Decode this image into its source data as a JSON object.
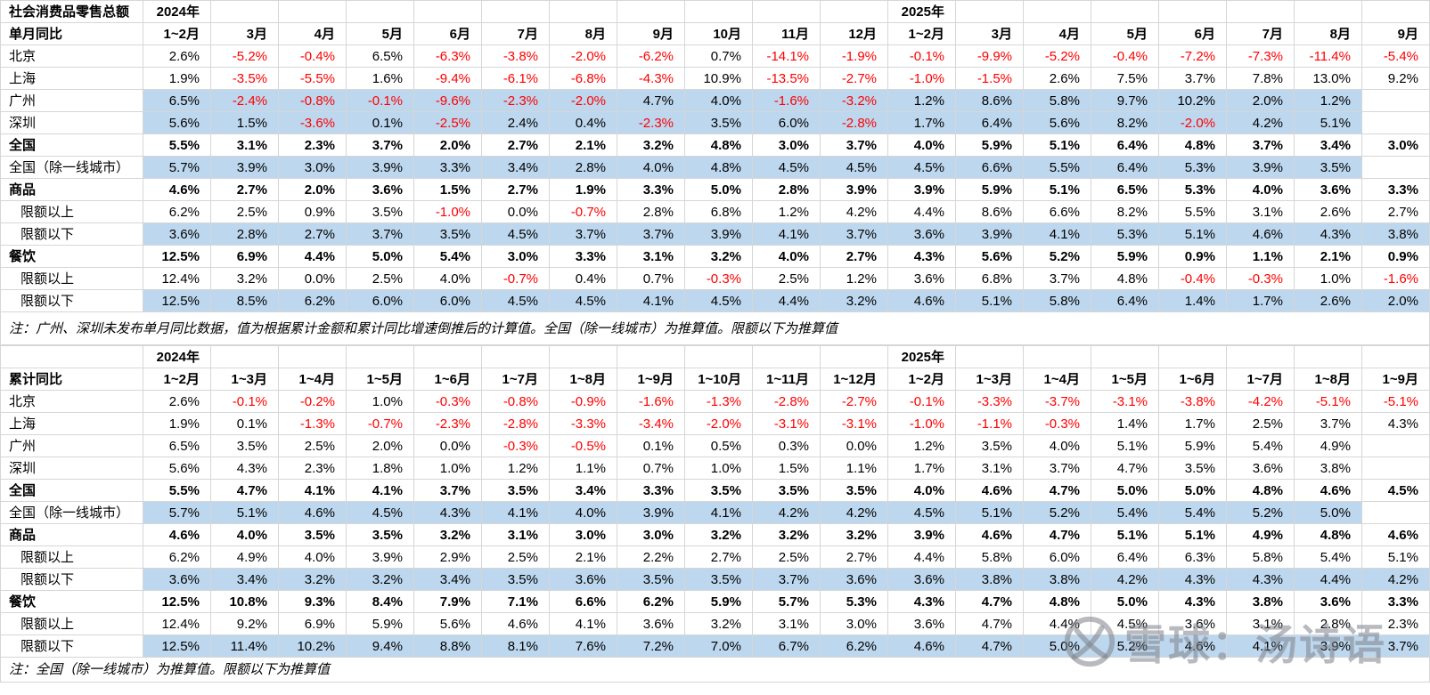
{
  "colors": {
    "highlight": "#BDD7EE",
    "negative": "#FF0000",
    "grid": "#D6D6D6"
  },
  "watermark": {
    "text": "雪球：汤诗语",
    "icon": "xueqiu-logo"
  },
  "table1": {
    "title": "社会消费品零售总额",
    "row_header": "单月同比",
    "year_headers": [
      {
        "col": 0,
        "label": "2024年"
      },
      {
        "col": 11,
        "label": "2025年"
      }
    ],
    "columns": [
      "1~2月",
      "3月",
      "4月",
      "5月",
      "6月",
      "7月",
      "8月",
      "9月",
      "10月",
      "11月",
      "12月",
      "1~2月",
      "3月",
      "4月",
      "5月",
      "6月",
      "7月",
      "8月",
      "9月"
    ],
    "rows": [
      {
        "label": "北京",
        "bold": false,
        "indent": false,
        "highlight": false,
        "values": [
          "2.6%",
          "-5.2%",
          "-0.4%",
          "6.5%",
          "-6.3%",
          "-3.8%",
          "-2.0%",
          "-6.2%",
          "0.7%",
          "-14.1%",
          "-1.9%",
          "-0.1%",
          "-9.9%",
          "-5.2%",
          "-0.4%",
          "-7.2%",
          "-7.3%",
          "-11.4%",
          "-5.4%"
        ]
      },
      {
        "label": "上海",
        "bold": false,
        "indent": false,
        "highlight": false,
        "values": [
          "1.9%",
          "-3.5%",
          "-5.5%",
          "1.6%",
          "-9.4%",
          "-6.1%",
          "-6.8%",
          "-4.3%",
          "10.9%",
          "-13.5%",
          "-2.7%",
          "-1.0%",
          "-1.5%",
          "2.6%",
          "7.5%",
          "3.7%",
          "7.8%",
          "13.0%",
          "9.2%"
        ]
      },
      {
        "label": "广州",
        "bold": false,
        "indent": false,
        "highlight": true,
        "values": [
          "6.5%",
          "-2.4%",
          "-0.8%",
          "-0.1%",
          "-9.6%",
          "-2.3%",
          "-2.0%",
          "4.7%",
          "4.0%",
          "-1.6%",
          "-3.2%",
          "1.2%",
          "8.6%",
          "5.8%",
          "9.7%",
          "10.2%",
          "2.0%",
          "1.2%",
          ""
        ]
      },
      {
        "label": "深圳",
        "bold": false,
        "indent": false,
        "highlight": true,
        "values": [
          "5.6%",
          "1.5%",
          "-3.6%",
          "0.1%",
          "-2.5%",
          "2.4%",
          "0.4%",
          "-2.3%",
          "3.5%",
          "6.0%",
          "-2.8%",
          "1.7%",
          "6.4%",
          "5.6%",
          "8.2%",
          "-2.0%",
          "4.2%",
          "5.1%",
          ""
        ]
      },
      {
        "label": "全国",
        "bold": true,
        "indent": false,
        "highlight": false,
        "values": [
          "5.5%",
          "3.1%",
          "2.3%",
          "3.7%",
          "2.0%",
          "2.7%",
          "2.1%",
          "3.2%",
          "4.8%",
          "3.0%",
          "3.7%",
          "4.0%",
          "5.9%",
          "5.1%",
          "6.4%",
          "4.8%",
          "3.7%",
          "3.4%",
          "3.0%"
        ]
      },
      {
        "label": "全国（除一线城市）",
        "bold": false,
        "indent": false,
        "highlight": true,
        "values": [
          "5.7%",
          "3.9%",
          "3.0%",
          "3.9%",
          "3.3%",
          "3.4%",
          "2.8%",
          "4.0%",
          "4.8%",
          "4.5%",
          "4.5%",
          "4.5%",
          "6.6%",
          "5.5%",
          "6.4%",
          "5.3%",
          "3.9%",
          "3.5%",
          ""
        ]
      },
      {
        "label": "商品",
        "bold": true,
        "indent": false,
        "highlight": false,
        "values": [
          "4.6%",
          "2.7%",
          "2.0%",
          "3.6%",
          "1.5%",
          "2.7%",
          "1.9%",
          "3.3%",
          "5.0%",
          "2.8%",
          "3.9%",
          "3.9%",
          "5.9%",
          "5.1%",
          "6.5%",
          "5.3%",
          "4.0%",
          "3.6%",
          "3.3%"
        ]
      },
      {
        "label": "限额以上",
        "bold": false,
        "indent": true,
        "highlight": false,
        "values": [
          "6.2%",
          "2.5%",
          "0.9%",
          "3.5%",
          "-1.0%",
          "0.0%",
          "-0.7%",
          "2.8%",
          "6.8%",
          "1.2%",
          "4.2%",
          "4.4%",
          "8.6%",
          "6.6%",
          "8.2%",
          "5.5%",
          "3.1%",
          "2.6%",
          "2.7%"
        ]
      },
      {
        "label": "限额以下",
        "bold": false,
        "indent": true,
        "highlight": true,
        "values": [
          "3.6%",
          "2.8%",
          "2.7%",
          "3.7%",
          "3.5%",
          "4.5%",
          "3.7%",
          "3.7%",
          "3.9%",
          "4.1%",
          "3.7%",
          "3.6%",
          "3.9%",
          "4.1%",
          "5.3%",
          "5.1%",
          "4.6%",
          "4.3%",
          "3.8%"
        ]
      },
      {
        "label": "餐饮",
        "bold": true,
        "indent": false,
        "highlight": false,
        "values": [
          "12.5%",
          "6.9%",
          "4.4%",
          "5.0%",
          "5.4%",
          "3.0%",
          "3.3%",
          "3.1%",
          "3.2%",
          "4.0%",
          "2.7%",
          "4.3%",
          "5.6%",
          "5.2%",
          "5.9%",
          "0.9%",
          "1.1%",
          "2.1%",
          "0.9%"
        ]
      },
      {
        "label": "限额以上",
        "bold": false,
        "indent": true,
        "highlight": false,
        "values": [
          "12.4%",
          "3.2%",
          "0.0%",
          "2.5%",
          "4.0%",
          "-0.7%",
          "0.4%",
          "0.7%",
          "-0.3%",
          "2.5%",
          "1.2%",
          "3.6%",
          "6.8%",
          "3.7%",
          "4.8%",
          "-0.4%",
          "-0.3%",
          "1.0%",
          "-1.6%"
        ]
      },
      {
        "label": "限额以下",
        "bold": false,
        "indent": true,
        "highlight": true,
        "values": [
          "12.5%",
          "8.5%",
          "6.2%",
          "6.0%",
          "6.0%",
          "4.5%",
          "4.5%",
          "4.1%",
          "4.5%",
          "4.4%",
          "3.2%",
          "4.6%",
          "5.1%",
          "5.8%",
          "6.4%",
          "1.4%",
          "1.7%",
          "2.6%",
          "2.0%"
        ]
      }
    ],
    "note": "注：广州、深圳未发布单月同比数据，值为根据累计金额和累计同比增速倒推后的计算值。全国（除一线城市）为推算值。限额以下为推算值"
  },
  "table2": {
    "title": "",
    "row_header": "累计同比",
    "year_headers": [
      {
        "col": 0,
        "label": "2024年"
      },
      {
        "col": 11,
        "label": "2025年"
      }
    ],
    "columns": [
      "1~2月",
      "1~3月",
      "1~4月",
      "1~5月",
      "1~6月",
      "1~7月",
      "1~8月",
      "1~9月",
      "1~10月",
      "1~11月",
      "1~12月",
      "1~2月",
      "1~3月",
      "1~4月",
      "1~5月",
      "1~6月",
      "1~7月",
      "1~8月",
      "1~9月"
    ],
    "rows": [
      {
        "label": "北京",
        "bold": false,
        "indent": false,
        "highlight": false,
        "values": [
          "2.6%",
          "-0.1%",
          "-0.2%",
          "1.0%",
          "-0.3%",
          "-0.8%",
          "-0.9%",
          "-1.6%",
          "-1.3%",
          "-2.8%",
          "-2.7%",
          "-0.1%",
          "-3.3%",
          "-3.7%",
          "-3.1%",
          "-3.8%",
          "-4.2%",
          "-5.1%",
          "-5.1%"
        ]
      },
      {
        "label": "上海",
        "bold": false,
        "indent": false,
        "highlight": false,
        "values": [
          "1.9%",
          "0.1%",
          "-1.3%",
          "-0.7%",
          "-2.3%",
          "-2.8%",
          "-3.3%",
          "-3.4%",
          "-2.0%",
          "-3.1%",
          "-3.1%",
          "-1.0%",
          "-1.1%",
          "-0.3%",
          "1.4%",
          "1.7%",
          "2.5%",
          "3.7%",
          "4.3%"
        ]
      },
      {
        "label": "广州",
        "bold": false,
        "indent": false,
        "highlight": false,
        "values": [
          "6.5%",
          "3.5%",
          "2.5%",
          "2.0%",
          "0.0%",
          "-0.3%",
          "-0.5%",
          "0.1%",
          "0.5%",
          "0.3%",
          "0.0%",
          "1.2%",
          "3.5%",
          "4.0%",
          "5.1%",
          "5.9%",
          "5.4%",
          "4.9%",
          ""
        ]
      },
      {
        "label": "深圳",
        "bold": false,
        "indent": false,
        "highlight": false,
        "values": [
          "5.6%",
          "4.3%",
          "2.3%",
          "1.8%",
          "1.0%",
          "1.2%",
          "1.1%",
          "0.7%",
          "1.0%",
          "1.5%",
          "1.1%",
          "1.7%",
          "3.1%",
          "3.7%",
          "4.7%",
          "3.5%",
          "3.6%",
          "3.8%",
          ""
        ]
      },
      {
        "label": "全国",
        "bold": true,
        "indent": false,
        "highlight": false,
        "values": [
          "5.5%",
          "4.7%",
          "4.1%",
          "4.1%",
          "3.7%",
          "3.5%",
          "3.4%",
          "3.3%",
          "3.5%",
          "3.5%",
          "3.5%",
          "4.0%",
          "4.6%",
          "4.7%",
          "5.0%",
          "5.0%",
          "4.8%",
          "4.6%",
          "4.5%"
        ]
      },
      {
        "label": "全国（除一线城市）",
        "bold": false,
        "indent": false,
        "highlight": true,
        "values": [
          "5.7%",
          "5.1%",
          "4.6%",
          "4.5%",
          "4.3%",
          "4.1%",
          "4.0%",
          "3.9%",
          "4.1%",
          "4.2%",
          "4.2%",
          "4.5%",
          "5.1%",
          "5.2%",
          "5.4%",
          "5.4%",
          "5.2%",
          "5.0%",
          ""
        ]
      },
      {
        "label": "商品",
        "bold": true,
        "indent": false,
        "highlight": false,
        "values": [
          "4.6%",
          "4.0%",
          "3.5%",
          "3.5%",
          "3.2%",
          "3.1%",
          "3.0%",
          "3.0%",
          "3.2%",
          "3.2%",
          "3.2%",
          "3.9%",
          "4.6%",
          "4.7%",
          "5.1%",
          "5.1%",
          "4.9%",
          "4.8%",
          "4.6%"
        ]
      },
      {
        "label": "限额以上",
        "bold": false,
        "indent": true,
        "highlight": false,
        "values": [
          "6.2%",
          "4.9%",
          "4.0%",
          "3.9%",
          "2.9%",
          "2.5%",
          "2.1%",
          "2.2%",
          "2.7%",
          "2.5%",
          "2.7%",
          "4.4%",
          "5.8%",
          "6.0%",
          "6.4%",
          "6.3%",
          "5.8%",
          "5.4%",
          "5.1%"
        ]
      },
      {
        "label": "限额以下",
        "bold": false,
        "indent": true,
        "highlight": true,
        "values": [
          "3.6%",
          "3.4%",
          "3.2%",
          "3.2%",
          "3.4%",
          "3.5%",
          "3.6%",
          "3.5%",
          "3.5%",
          "3.7%",
          "3.6%",
          "3.6%",
          "3.8%",
          "3.8%",
          "4.2%",
          "4.3%",
          "4.3%",
          "4.4%",
          "4.2%"
        ]
      },
      {
        "label": "餐饮",
        "bold": true,
        "indent": false,
        "highlight": false,
        "values": [
          "12.5%",
          "10.8%",
          "9.3%",
          "8.4%",
          "7.9%",
          "7.1%",
          "6.6%",
          "6.2%",
          "5.9%",
          "5.7%",
          "5.3%",
          "4.3%",
          "4.7%",
          "4.8%",
          "5.0%",
          "4.3%",
          "3.8%",
          "3.6%",
          "3.3%"
        ]
      },
      {
        "label": "限额以上",
        "bold": false,
        "indent": true,
        "highlight": false,
        "values": [
          "12.4%",
          "9.2%",
          "6.9%",
          "5.9%",
          "5.6%",
          "4.6%",
          "4.1%",
          "3.6%",
          "3.2%",
          "3.1%",
          "3.0%",
          "3.6%",
          "4.7%",
          "4.4%",
          "4.5%",
          "3.6%",
          "3.1%",
          "2.8%",
          "2.3%"
        ]
      },
      {
        "label": "限额以下",
        "bold": false,
        "indent": true,
        "highlight": true,
        "values": [
          "12.5%",
          "11.4%",
          "10.2%",
          "9.4%",
          "8.8%",
          "8.1%",
          "7.6%",
          "7.2%",
          "7.0%",
          "6.7%",
          "6.2%",
          "4.6%",
          "4.7%",
          "5.0%",
          "5.2%",
          "4.6%",
          "4.1%",
          "3.9%",
          "3.7%"
        ]
      }
    ],
    "note": "注：全国（除一线城市）为推算值。限额以下为推算值"
  }
}
